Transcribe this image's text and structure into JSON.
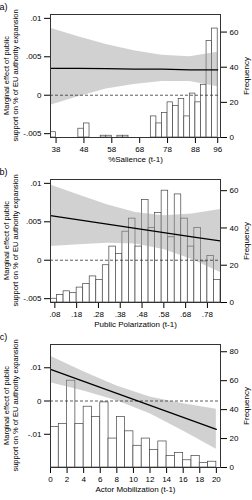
{
  "chart_data": [
    {
      "type": "line",
      "title": "(a)",
      "x_label": "%Salience (t-1)",
      "y_label": "Marginal effect of public support on % of EU authority expansion",
      "y2_label": "Frequency",
      "x": [
        36,
        46,
        56,
        66,
        76,
        86,
        96
      ],
      "values": [
        0.0035,
        0.00348,
        0.00345,
        0.0034,
        0.0034,
        0.0033,
        0.0033
      ],
      "ci_upper": [
        0.0087,
        0.0076,
        0.0066,
        0.0058,
        0.0052,
        0.005,
        0.0056
      ],
      "ci_lower": [
        -0.0013,
        -0.0002,
        0.0008,
        0.0014,
        0.0018,
        0.0018,
        0.0011
      ],
      "hline": 0,
      "histogram": {
        "axis": "y2",
        "bins": [
          36,
          38,
          40,
          42,
          44,
          46,
          48,
          50,
          52,
          54,
          56,
          58,
          60,
          62,
          64,
          66,
          68,
          70,
          72,
          74,
          76,
          78,
          80,
          82,
          84,
          86,
          88,
          90,
          92,
          94,
          96
        ],
        "counts": [
          3,
          0,
          0,
          0,
          0,
          5,
          8,
          0,
          0,
          1,
          1,
          0,
          1,
          1,
          0,
          0,
          0,
          0,
          12,
          8,
          14,
          20,
          18,
          22,
          12,
          25,
          20,
          30,
          55,
          62
        ]
      },
      "xlim": [
        36,
        97
      ],
      "xticks": [
        38,
        48,
        58,
        68,
        78,
        88,
        96
      ],
      "ylim": [
        -0.0055,
        0.0105
      ],
      "yticks": [
        {
          "value": -0.005,
          "label": "-.005"
        },
        0,
        {
          "value": 0.005,
          "label": ".005"
        },
        {
          "value": 0.01,
          "label": ".01"
        }
      ],
      "y2lim": [
        0,
        70
      ],
      "y2ticks": [
        0,
        20,
        40,
        60
      ]
    },
    {
      "type": "line",
      "title": "(b)",
      "x_label": "Public Polarization (t-1)",
      "y_label": "Marginal effect of public support on % of EU authority expansion",
      "y2_label": "Frequency",
      "x": [
        0.06,
        0.19,
        0.32,
        0.45,
        0.58,
        0.71,
        0.84
      ],
      "values": [
        0.0058,
        0.00525,
        0.0047,
        0.00415,
        0.0036,
        0.00305,
        0.0025
      ],
      "ci_upper": [
        0.0098,
        0.0085,
        0.0072,
        0.0062,
        0.0058,
        0.006,
        0.0066
      ],
      "ci_lower": [
        0.0018,
        0.002,
        0.0022,
        0.0021,
        0.0014,
        0.0001,
        -0.0016
      ],
      "hline": 0,
      "histogram": {
        "axis": "y2",
        "bins": [
          0.06,
          0.09,
          0.12,
          0.15,
          0.18,
          0.21,
          0.24,
          0.27,
          0.3,
          0.33,
          0.36,
          0.39,
          0.42,
          0.45,
          0.48,
          0.51,
          0.54,
          0.57,
          0.6,
          0.63,
          0.66,
          0.69,
          0.72,
          0.75,
          0.78,
          0.81,
          0.84
        ],
        "counts": [
          2,
          4,
          6,
          5,
          8,
          10,
          14,
          12,
          20,
          30,
          26,
          38,
          45,
          30,
          55,
          40,
          48,
          60,
          35,
          58,
          45,
          30,
          40,
          22,
          25,
          12
        ]
      },
      "xlim": [
        0.06,
        0.84
      ],
      "xticks": [
        {
          "value": 0.08,
          "label": ".08"
        },
        {
          "value": 0.18,
          "label": ".18"
        },
        {
          "value": 0.28,
          "label": ".28"
        },
        {
          "value": 0.38,
          "label": ".38"
        },
        {
          "value": 0.48,
          "label": ".48"
        },
        {
          "value": 0.58,
          "label": ".58"
        },
        {
          "value": 0.68,
          "label": ".68"
        },
        {
          "value": 0.78,
          "label": ".78"
        }
      ],
      "ylim": [
        -0.0055,
        0.0105
      ],
      "yticks": [
        {
          "value": -0.005,
          "label": "-.005"
        },
        0,
        {
          "value": 0.005,
          "label": ".005"
        },
        {
          "value": 0.01,
          "label": ".01"
        }
      ],
      "y2lim": [
        0,
        66
      ],
      "y2ticks": [
        0,
        20,
        40,
        60
      ]
    },
    {
      "type": "line",
      "title": "(c)",
      "x_label": "Actor Mobilization (t-1)",
      "y_label": "Marginal effect of public support on % of EU authority expansion",
      "y2_label": "Frequency",
      "x": [
        0,
        4,
        8,
        12,
        16,
        20
      ],
      "values": [
        0.0095,
        0.0059,
        0.0023,
        -0.0013,
        -0.0049,
        -0.0085
      ],
      "ci_upper": [
        0.0135,
        0.0088,
        0.0045,
        0.0012,
        -0.0008,
        -0.0025
      ],
      "ci_lower": [
        0.0055,
        0.003,
        0.0001,
        -0.0038,
        -0.009,
        -0.0145
      ],
      "hline": 0,
      "histogram": {
        "axis": "y2",
        "bins": [
          0,
          1,
          2,
          3,
          4,
          5,
          6,
          7,
          8,
          9,
          10,
          11,
          12,
          13,
          14,
          15,
          16,
          17,
          18,
          19,
          20
        ],
        "counts": [
          28,
          30,
          60,
          30,
          42,
          35,
          45,
          20,
          35,
          25,
          15,
          20,
          12,
          18,
          8,
          10,
          5,
          8,
          3,
          4
        ]
      },
      "xlim": [
        0,
        20.5
      ],
      "xticks": [
        0,
        2,
        4,
        6,
        8,
        10,
        12,
        14,
        16,
        18,
        20
      ],
      "ylim": [
        -0.02,
        0.017
      ],
      "yticks": [
        {
          "value": -0.01,
          "label": "-.01"
        },
        0,
        {
          "value": 0.01,
          "label": ".01"
        }
      ],
      "y2lim": [
        0,
        85
      ],
      "y2ticks": [
        0,
        20,
        40,
        60,
        80
      ]
    }
  ]
}
